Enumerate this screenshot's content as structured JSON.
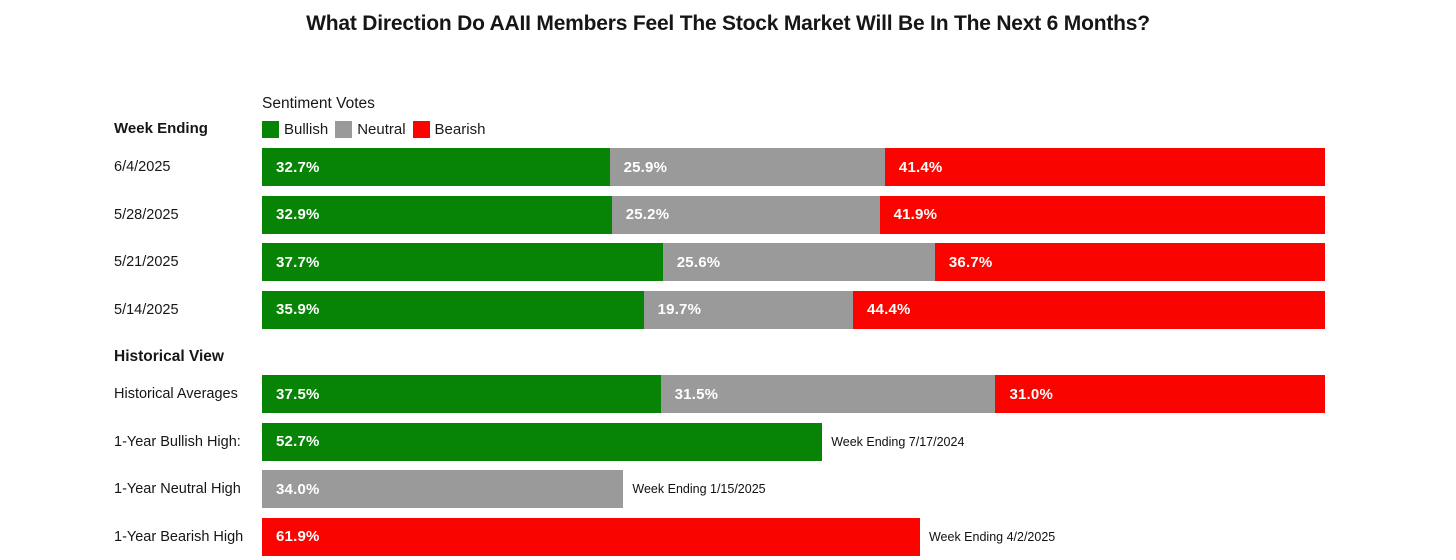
{
  "title": "What Direction Do AAII Members Feel The Stock Market Will Be In The Next 6 Months?",
  "colors": {
    "bullish": "#078306",
    "neutral": "#9A9A9A",
    "bearish": "#FA0400"
  },
  "chart_data": {
    "type": "bar",
    "orientation": "horizontal",
    "stacked": true,
    "xlim": [
      0,
      100
    ],
    "grid": false,
    "legend_title": "Sentiment Votes",
    "legend": [
      {
        "name": "bullish",
        "label": "Bullish"
      },
      {
        "name": "neutral",
        "label": "Neutral"
      },
      {
        "name": "bearish",
        "label": "Bearish"
      }
    ],
    "left_header": "Week Ending",
    "section_header": "Historical View",
    "rows": [
      {
        "label": "6/4/2025",
        "segments": [
          {
            "name": "bullish",
            "value": 32.7,
            "label": "32.7%"
          },
          {
            "name": "neutral",
            "value": 25.9,
            "label": "25.9%"
          },
          {
            "name": "bearish",
            "value": 41.4,
            "label": "41.4%"
          }
        ]
      },
      {
        "label": "5/28/2025",
        "segments": [
          {
            "name": "bullish",
            "value": 32.9,
            "label": "32.9%"
          },
          {
            "name": "neutral",
            "value": 25.2,
            "label": "25.2%"
          },
          {
            "name": "bearish",
            "value": 41.9,
            "label": "41.9%"
          }
        ]
      },
      {
        "label": "5/21/2025",
        "segments": [
          {
            "name": "bullish",
            "value": 37.7,
            "label": "37.7%"
          },
          {
            "name": "neutral",
            "value": 25.6,
            "label": "25.6%"
          },
          {
            "name": "bearish",
            "value": 36.7,
            "label": "36.7%"
          }
        ]
      },
      {
        "label": "5/14/2025",
        "segments": [
          {
            "name": "bullish",
            "value": 35.9,
            "label": "35.9%"
          },
          {
            "name": "neutral",
            "value": 19.7,
            "label": "19.7%"
          },
          {
            "name": "bearish",
            "value": 44.4,
            "label": "44.4%"
          }
        ]
      },
      {
        "label": "Historical Averages",
        "segments": [
          {
            "name": "bullish",
            "value": 37.5,
            "label": "37.5%"
          },
          {
            "name": "neutral",
            "value": 31.5,
            "label": "31.5%"
          },
          {
            "name": "bearish",
            "value": 31.0,
            "label": "31.0%"
          }
        ]
      },
      {
        "label": "1-Year Bullish High:",
        "segments": [
          {
            "name": "bullish",
            "value": 52.7,
            "label": "52.7%"
          }
        ],
        "annotation": "Week Ending 7/17/2024"
      },
      {
        "label": "1-Year Neutral High",
        "segments": [
          {
            "name": "neutral",
            "value": 34.0,
            "label": "34.0%"
          }
        ],
        "annotation": "Week Ending 1/15/2025"
      },
      {
        "label": "1-Year Bearish High",
        "segments": [
          {
            "name": "bearish",
            "value": 61.9,
            "label": "61.9%"
          }
        ],
        "annotation": "Week Ending 4/2/2025"
      }
    ]
  }
}
